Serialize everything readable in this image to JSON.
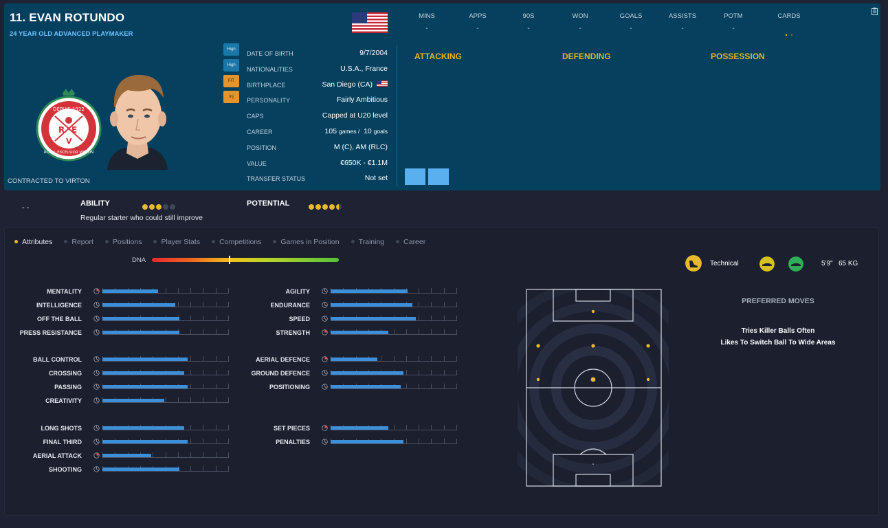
{
  "player": {
    "name": "11. EVAN ROTUNDO",
    "role": "24 YEAR OLD  ADVANCED PLAYMAKER",
    "contract": "CONTRACTED TO VIRTON",
    "club_crest_text_top": "DEPUIS 1922",
    "club_crest_text_bottom": "ROYAL EXCELSIOR VIRTON",
    "club_crest_letters": [
      "R",
      "E",
      "V"
    ]
  },
  "badges": [
    "High",
    "High",
    "FIT",
    "Inj"
  ],
  "info": [
    {
      "label": "DATE OF BIRTH",
      "value": "9/7/2004"
    },
    {
      "label": "NATIONALITIES",
      "value": "U.S.A., France"
    },
    {
      "label": "BIRTHPLACE",
      "value": "San Diego (CA)"
    },
    {
      "label": "PERSONALITY",
      "value": "Fairly Ambitious"
    },
    {
      "label": "CAPS",
      "value": "Capped at U20 level"
    },
    {
      "label": "CAREER",
      "value_a": "105",
      "unit_a": "games /",
      "value_b": "10",
      "unit_b": "goals"
    },
    {
      "label": "POSITION",
      "value": "M (C), AM (RLC)"
    },
    {
      "label": "VALUE",
      "value": "€650K - €1.1M"
    },
    {
      "label": "TRANSFER STATUS",
      "value": "Not set"
    }
  ],
  "stats_header": [
    {
      "label": "MINS",
      "value": "-"
    },
    {
      "label": "APPS",
      "value": "-"
    },
    {
      "label": "90S",
      "value": "-"
    },
    {
      "label": "WON",
      "value": "-"
    },
    {
      "label": "GOALS",
      "value": "-"
    },
    {
      "label": "ASSISTS",
      "value": "-"
    },
    {
      "label": "POTM",
      "value": "-"
    },
    {
      "label": "CARDS",
      "value": ""
    }
  ],
  "sections": [
    "ATTACKING",
    "DEFENDING",
    "POSSESSION"
  ],
  "ability": {
    "dash": "- -",
    "ability_label": "ABILITY",
    "ability_stars": 3,
    "potential_label": "POTENTIAL",
    "potential_stars": 4.5,
    "description": "Regular starter who could still improve"
  },
  "tabs": [
    "Attributes",
    "Report",
    "Positions",
    "Player Stats",
    "Competitions",
    "Games in Position",
    "Training",
    "Career"
  ],
  "active_tab": "Attributes",
  "dna": {
    "label": "DNA",
    "marker": 0.41
  },
  "attributes_left": [
    {
      "name": "MENTALITY",
      "value": 0.44,
      "icon": "red"
    },
    {
      "name": "INTELLIGENCE",
      "value": 0.58,
      "icon": "grey"
    },
    {
      "name": "OFF THE BALL",
      "value": 0.61,
      "icon": "grey"
    },
    {
      "name": "PRESS RESISTANCE",
      "value": 0.61,
      "icon": "grey"
    },
    null,
    {
      "name": "BALL CONTROL",
      "value": 0.68,
      "icon": "grey"
    },
    {
      "name": "CROSSING",
      "value": 0.65,
      "icon": "grey"
    },
    {
      "name": "PASSING",
      "value": 0.68,
      "icon": "grey"
    },
    {
      "name": "CREATIVITY",
      "value": 0.49,
      "icon": "grey"
    },
    null,
    {
      "name": "LONG SHOTS",
      "value": 0.65,
      "icon": "grey"
    },
    {
      "name": "FINAL THIRD",
      "value": 0.68,
      "icon": "grey"
    },
    {
      "name": "AERIAL ATTACK",
      "value": 0.39,
      "icon": "red"
    },
    {
      "name": "SHOOTING",
      "value": 0.61,
      "icon": "grey"
    }
  ],
  "attributes_right": [
    {
      "name": "AGILITY",
      "value": 0.61,
      "icon": "grey"
    },
    {
      "name": "ENDURANCE",
      "value": 0.65,
      "icon": "grey"
    },
    {
      "name": "SPEED",
      "value": 0.68,
      "icon": "grey"
    },
    {
      "name": "STRENGTH",
      "value": 0.46,
      "icon": "red"
    },
    null,
    {
      "name": "AERIAL DEFENCE",
      "value": 0.37,
      "icon": "red"
    },
    {
      "name": "GROUND DEFENCE",
      "value": 0.58,
      "icon": "grey"
    },
    {
      "name": "POSITIONING",
      "value": 0.56,
      "icon": "grey"
    },
    null,
    null,
    {
      "name": "SET PIECES",
      "value": 0.46,
      "icon": "red"
    },
    {
      "name": "PENALTIES",
      "value": 0.58,
      "icon": "grey"
    }
  ],
  "mode": {
    "label": "Technical",
    "height": "5'9\"",
    "weight": "65 KG"
  },
  "preferred_moves": {
    "title": "PREFERRED MOVES",
    "items": [
      "Tries Killer Balls Often",
      "Likes To Switch Ball To Wide Areas"
    ]
  },
  "colors": {
    "header_bg": "#05405f",
    "accent_yellow": "#e8b92c",
    "attr_bar": "#3d8fd9",
    "link_blue": "#6ec2ff"
  }
}
